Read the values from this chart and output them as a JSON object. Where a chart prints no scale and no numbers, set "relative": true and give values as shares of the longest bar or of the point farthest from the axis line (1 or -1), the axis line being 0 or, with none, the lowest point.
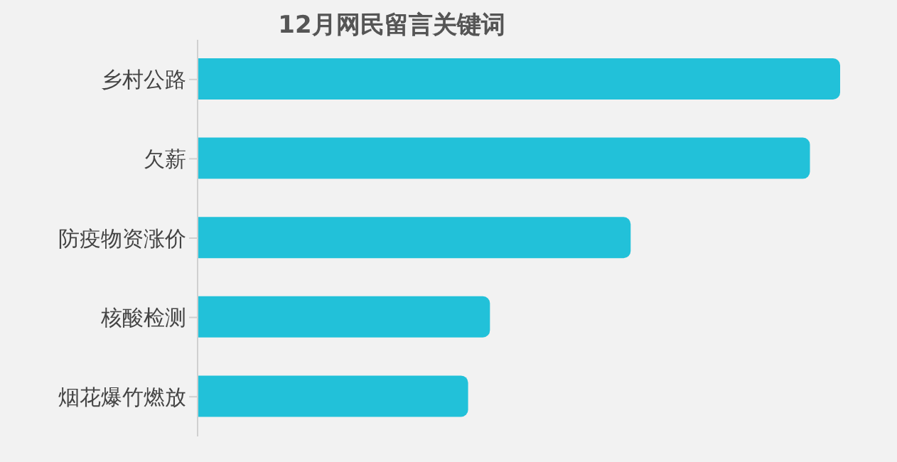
{
  "chart_data": {
    "type": "bar",
    "orientation": "horizontal",
    "relative": true,
    "title": "12月网民留言关键词",
    "categories": [
      "乡村公路",
      "欠薪",
      "防疫物资涨价",
      "核酸检测",
      "烟花爆竹燃放"
    ],
    "values": [
      1,
      0.953,
      0.674,
      0.455,
      0.421
    ],
    "color": "#22c1d9",
    "grid": false,
    "legend": false
  }
}
